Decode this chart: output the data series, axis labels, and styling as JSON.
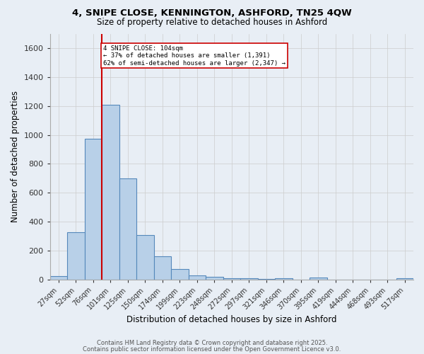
{
  "title_line1": "4, SNIPE CLOSE, KENNINGTON, ASHFORD, TN25 4QW",
  "title_line2": "Size of property relative to detached houses in Ashford",
  "xlabel": "Distribution of detached houses by size in Ashford",
  "ylabel": "Number of detached properties",
  "categories": [
    "27sqm",
    "52sqm",
    "76sqm",
    "101sqm",
    "125sqm",
    "150sqm",
    "174sqm",
    "199sqm",
    "223sqm",
    "248sqm",
    "272sqm",
    "297sqm",
    "321sqm",
    "346sqm",
    "370sqm",
    "395sqm",
    "419sqm",
    "444sqm",
    "468sqm",
    "493sqm",
    "517sqm"
  ],
  "values": [
    25,
    325,
    975,
    1210,
    700,
    310,
    160,
    75,
    30,
    18,
    10,
    8,
    5,
    10,
    0,
    12,
    0,
    0,
    0,
    0,
    10
  ],
  "bar_color": "#b8d0e8",
  "bar_edge_color": "#5588bb",
  "vline_color": "#cc0000",
  "vline_x_index": 3,
  "annotation_text": "4 SNIPE CLOSE: 104sqm\n← 37% of detached houses are smaller (1,391)\n62% of semi-detached houses are larger (2,347) →",
  "annotation_box_facecolor": "#ffffff",
  "annotation_box_edgecolor": "#cc0000",
  "ylim": [
    0,
    1700
  ],
  "yticks": [
    0,
    200,
    400,
    600,
    800,
    1000,
    1200,
    1400,
    1600
  ],
  "grid_color": "#cccccc",
  "bg_color": "#e8eef5",
  "footer_line1": "Contains HM Land Registry data © Crown copyright and database right 2025.",
  "footer_line2": "Contains public sector information licensed under the Open Government Licence v3.0."
}
